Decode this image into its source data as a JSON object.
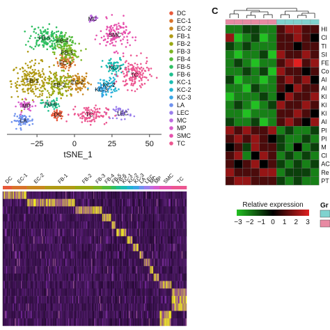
{
  "panel_c_label": "C",
  "colors": {
    "DC": "#e8593a",
    "EC-1": "#d9722a",
    "EC-2": "#c8871e",
    "FB-1": "#b09a14",
    "FB-2": "#98a812",
    "FB-3": "#7bb522",
    "FB-4": "#52bb3a",
    "FB-5": "#2fbf62",
    "FB-6": "#1fbf8e",
    "KC-1": "#1bbcb2",
    "KC-2": "#22b4d2",
    "KC-3": "#3aa6e6",
    "LA": "#6f92ee",
    "LEC": "#9a7fec",
    "MC": "#bd6ce0",
    "MP": "#d75ccc",
    "SMC": "#e651ad",
    "TC": "#ec5690",
    "heat_low": "#22c022",
    "heat_mid": "#000000",
    "heat_high": "#e02020",
    "group1": "#e88aa3",
    "group2": "#7fd3cf",
    "yb_low": "#2a0a3a",
    "yb_mid": "#7a2aa0",
    "yb_high": "#f2ee1a"
  },
  "chart_data": [
    {
      "type": "scatter",
      "xlabel": "tSNE_1",
      "xticks": [
        -25,
        0,
        25,
        50
      ],
      "xlim": [
        -45,
        58
      ],
      "legend_position": "right",
      "legend": [
        "DC",
        "EC-1",
        "EC-2",
        "FB-1",
        "FB-2",
        "FB-3",
        "FB-4",
        "FB-5",
        "FB-6",
        "KC-1",
        "KC-2",
        "KC-3",
        "LA",
        "LEC",
        "MC",
        "MP",
        "SMC",
        "TC"
      ],
      "clusters": [
        {
          "name": "DC",
          "label": "DC",
          "cx": -11,
          "cy": -20,
          "sx": 2,
          "sy": 1.5,
          "n": 40
        },
        {
          "name": "EC-1",
          "label": "EC-1",
          "cx": -6,
          "cy": 15,
          "sx": 3,
          "sy": 2.5,
          "n": 60
        },
        {
          "name": "EC-2",
          "label": "EC-2",
          "cx": 2,
          "cy": 2,
          "sx": 4,
          "sy": 4,
          "n": 90
        },
        {
          "name": "FB-1",
          "label": "FB-1",
          "cx": -28,
          "cy": 3,
          "sx": 7,
          "sy": 6,
          "n": 200
        },
        {
          "name": "FB-2",
          "label": "FB-2",
          "cx": -10,
          "cy": 0,
          "sx": 5,
          "sy": 4,
          "n": 120
        },
        {
          "name": "FB-3",
          "label": "FB-3",
          "cx": -5,
          "cy": 22,
          "sx": 4,
          "sy": 3,
          "n": 90
        },
        {
          "name": "FB-4",
          "label": "FB-4",
          "cx": -8,
          "cy": 30,
          "sx": 4,
          "sy": 3,
          "n": 90
        },
        {
          "name": "FB-5",
          "label": "FB-5",
          "cx": -20,
          "cy": 32,
          "sx": 5,
          "sy": 4,
          "n": 120
        },
        {
          "name": "FB-6",
          "label": "FB-6",
          "cx": -16,
          "cy": -13,
          "sx": 3,
          "sy": 2,
          "n": 40
        },
        {
          "name": "KC-1",
          "label": "KC-1",
          "cx": 27,
          "cy": 12,
          "sx": 4,
          "sy": 3,
          "n": 60
        },
        {
          "name": "KC-2",
          "label": "KC-2",
          "cx": 23,
          "cy": 0,
          "sx": 3,
          "sy": 3,
          "n": 50
        },
        {
          "name": "KC-3",
          "label": "KC-3",
          "cx": 18,
          "cy": -3,
          "sx": 3,
          "sy": 2,
          "n": 40
        },
        {
          "name": "LA",
          "label": "LA",
          "cx": -34,
          "cy": -24,
          "sx": 3.5,
          "sy": 2,
          "n": 60
        },
        {
          "name": "LEC",
          "label": "LEC",
          "cx": 32,
          "cy": -19,
          "sx": 3,
          "sy": 2,
          "n": 40
        },
        {
          "name": "MC",
          "label": "MC",
          "cx": 12,
          "cy": 45,
          "sx": 2,
          "sy": 1,
          "n": 20
        },
        {
          "name": "MP",
          "label": "MP",
          "cx": -32,
          "cy": -14,
          "sx": 3,
          "sy": 2,
          "n": 40
        },
        {
          "name": "SMC",
          "label": "SMC",
          "cx": 27,
          "cy": 34,
          "sx": 5,
          "sy": 5,
          "n": 120
        },
        {
          "name": "TC",
          "label": "TC",
          "cx": 40,
          "cy": 7,
          "sx": 5,
          "sy": 5,
          "n": 140
        },
        {
          "name": "TC-lower",
          "label": "TC",
          "cx": 10,
          "cy": -20,
          "sx": 6,
          "sy": 3,
          "n": 100
        }
      ]
    },
    {
      "type": "heatmap",
      "column_labels": [
        "DC",
        "EC-1",
        "EC-2",
        "FB-1",
        "FB-2",
        "FB-3",
        "FB-4",
        "FB-5",
        "FB-6",
        "KC-1",
        "KC-2",
        "KC-3",
        "LA",
        "LEC",
        "MC",
        "MP",
        "SMC",
        "TC"
      ],
      "column_weights": [
        1.5,
        2.5,
        3,
        5,
        3,
        1.5,
        1.5,
        0.8,
        0.8,
        1,
        1,
        1,
        0.8,
        1,
        0.6,
        1,
        2,
        2.5
      ],
      "row_blocks": [
        [
          0,
          1
        ],
        [
          2,
          3
        ],
        [
          4,
          5
        ],
        [
          6
        ],
        [
          7
        ],
        [
          8,
          9
        ],
        [
          10
        ],
        [
          11
        ],
        [
          12
        ],
        [
          13
        ],
        [
          14
        ],
        [
          15
        ],
        [
          16
        ],
        [
          17
        ],
        [
          17
        ],
        [
          17
        ],
        [
          16
        ],
        [
          16
        ]
      ]
    },
    {
      "type": "heatmap",
      "row_labels": [
        "HI",
        "Cl",
        "TI",
        "SI",
        "FE",
        "Co",
        "Al",
        "Al",
        "Kl",
        "Kl",
        "Kl",
        "Al",
        "Pl",
        "Pl",
        "M",
        "Cl",
        "AC",
        "Re",
        "PT"
      ],
      "groups": [
        1,
        1,
        1,
        1,
        1,
        1,
        2,
        2,
        2,
        2,
        2
      ],
      "values": [
        [
          -2,
          -2,
          -1,
          -1,
          -2,
          -2,
          1,
          2,
          2,
          1,
          1
        ],
        [
          2,
          -3,
          -2,
          -1,
          -3,
          -2,
          1,
          1,
          2,
          1,
          0
        ],
        [
          -1,
          -2,
          -1,
          -2,
          -2,
          -2,
          1,
          1,
          0,
          1,
          1
        ],
        [
          -2,
          -3,
          -2,
          -2,
          -1,
          -3,
          2,
          1,
          1,
          2,
          1
        ],
        [
          -2,
          -1,
          -2,
          -3,
          -2,
          -2,
          1,
          2,
          3,
          1,
          2
        ],
        [
          -2,
          -2,
          -1,
          -2,
          -1,
          -3,
          2,
          1,
          1,
          0,
          1
        ],
        [
          -1,
          -3,
          -2,
          -2,
          -3,
          -2,
          1,
          2,
          1,
          2,
          0
        ],
        [
          -2,
          -2,
          -3,
          -1,
          -2,
          -2,
          1,
          0,
          2,
          1,
          1
        ],
        [
          -3,
          -2,
          -2,
          -2,
          -1,
          -2,
          0,
          2,
          1,
          1,
          2
        ],
        [
          -2,
          -1,
          -2,
          -3,
          -2,
          -1,
          2,
          1,
          1,
          2,
          1
        ],
        [
          -2,
          -2,
          -3,
          -2,
          -2,
          -2,
          1,
          1,
          2,
          1,
          0
        ],
        [
          -1,
          -2,
          -2,
          -1,
          -3,
          -2,
          1,
          2,
          1,
          0,
          2
        ],
        [
          2,
          1,
          2,
          1,
          1,
          2,
          -2,
          -1,
          -2,
          -2,
          -1
        ],
        [
          1,
          2,
          1,
          2,
          1,
          0,
          -1,
          -2,
          -2,
          -1,
          -2
        ],
        [
          0,
          1,
          -1,
          2,
          1,
          1,
          -1,
          -2,
          0,
          -2,
          -1
        ],
        [
          1,
          2,
          -2,
          0,
          2,
          1,
          -2,
          -1,
          -2,
          -1,
          -2
        ],
        [
          1,
          0,
          1,
          2,
          0,
          1,
          -1,
          -2,
          -1,
          -2,
          -1
        ],
        [
          2,
          1,
          1,
          1,
          2,
          2,
          -2,
          -1,
          -1,
          -1,
          -2
        ],
        [
          1,
          2,
          2,
          1,
          1,
          1,
          -1,
          -2,
          -1,
          -2,
          -2
        ]
      ],
      "colorbar_label": "Relative expression",
      "colorbar_ticks": [
        "−3",
        "−2",
        "−1",
        "0",
        "1",
        "2",
        "3"
      ],
      "colorbar_range": [
        -3,
        3
      ],
      "group_legend_title": "Gr"
    }
  ]
}
